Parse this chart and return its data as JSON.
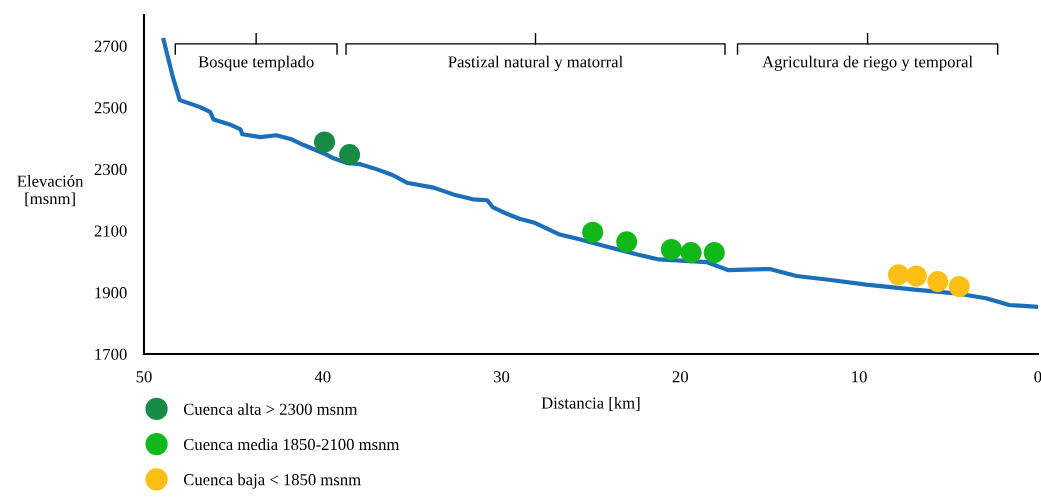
{
  "chart_data": {
    "type": "line",
    "xlabel": "Distancia [km]",
    "ylabel": "Elevación\n[msnm]",
    "xlim": [
      50,
      0
    ],
    "xticks": [
      50,
      40,
      30,
      20,
      10,
      0
    ],
    "ylim": [
      1700,
      2800
    ],
    "yticks": [
      1700,
      1900,
      2100,
      2300,
      2500,
      2700
    ],
    "grid": false,
    "legend": "bottom left",
    "series": [
      {
        "color": "#1a6fb8",
        "line_style": "solid",
        "marker": "none",
        "x": [
          48.9,
          48.4,
          48.0,
          46.9,
          46.3,
          46.1,
          45.2,
          44.6,
          44.5,
          43.5,
          42.6,
          41.8,
          41.1,
          39.9,
          39.4,
          38.6,
          37.9,
          37.0,
          36.1,
          35.3,
          33.8,
          32.7,
          31.6,
          30.8,
          30.5,
          29.7,
          29.0,
          28.2,
          26.8,
          25.7,
          24.3,
          22.4,
          21.2,
          18.5,
          17.3,
          15.0,
          13.5,
          11.7,
          9.6,
          6.9,
          4.6,
          2.9,
          1.6,
          0.0
        ],
        "values": [
          2719,
          2602,
          2524,
          2502,
          2486,
          2461,
          2445,
          2429,
          2413,
          2404,
          2410,
          2398,
          2379,
          2350,
          2335,
          2319,
          2316,
          2300,
          2281,
          2256,
          2240,
          2218,
          2202,
          2199,
          2177,
          2155,
          2139,
          2127,
          2089,
          2073,
          2051,
          2023,
          2007,
          1998,
          1972,
          1976,
          1953,
          1941,
          1925,
          1909,
          1897,
          1881,
          1859,
          1853
        ]
      },
      {
        "type": "scatter",
        "name": "Cuenca alta > 2300 msnm",
        "color": "#178a46",
        "marker": "circle",
        "x": [
          39.9,
          38.5
        ],
        "values": [
          2388,
          2347
        ]
      },
      {
        "type": "scatter",
        "name": "Cuenca media 1850-2100 msnm",
        "color": "#12b81a",
        "marker": "circle",
        "x": [
          24.9,
          23.0,
          20.5,
          19.4,
          18.1
        ],
        "values": [
          2095,
          2064,
          2039,
          2029,
          2029
        ]
      },
      {
        "type": "scatter",
        "name": "Cuenca baja < 1850 msnm",
        "color": "#fbbf16",
        "marker": "circle",
        "x": [
          7.8,
          6.8,
          5.6,
          4.4
        ],
        "values": [
          1957,
          1953,
          1935,
          1919
        ]
      }
    ],
    "annotations": [
      "Bosque templado",
      "Pastizal natural y matorral",
      "Agricultura de riego y temporal"
    ]
  }
}
